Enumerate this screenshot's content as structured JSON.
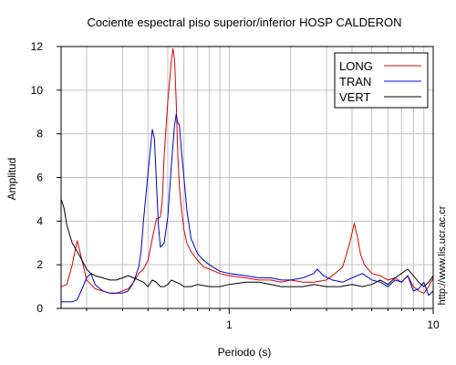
{
  "chart_data": {
    "type": "line",
    "title": "Cociente espectral piso superior/inferior  HOSP CALDERON",
    "xlabel": "Periodo (s)",
    "ylabel": "Amplitud",
    "side_text": "http://www.lis.ucr.ac.cr",
    "x_scale": "log",
    "xlim": [
      0.15,
      10
    ],
    "ylim": [
      0,
      12
    ],
    "x_ticks": [
      1,
      10
    ],
    "x_tick_labels": [
      "1",
      "10"
    ],
    "y_ticks": [
      0,
      2,
      4,
      6,
      8,
      10,
      12
    ],
    "y_tick_labels": [
      "0",
      "2",
      "4",
      "6",
      "8",
      "10",
      "12"
    ],
    "grid": true,
    "legend_position": "top-right",
    "series": [
      {
        "name": "LONG",
        "color": "#dd0000",
        "x": [
          0.15,
          0.16,
          0.17,
          0.18,
          0.19,
          0.2,
          0.21,
          0.22,
          0.24,
          0.26,
          0.28,
          0.3,
          0.32,
          0.34,
          0.36,
          0.38,
          0.4,
          0.42,
          0.44,
          0.46,
          0.47,
          0.48,
          0.5,
          0.52,
          0.53,
          0.54,
          0.55,
          0.56,
          0.57,
          0.58,
          0.6,
          0.62,
          0.65,
          0.7,
          0.75,
          0.8,
          0.9,
          1.0,
          1.2,
          1.4,
          1.6,
          1.8,
          2.0,
          2.3,
          2.6,
          3.0,
          3.3,
          3.6,
          3.9,
          4.1,
          4.25,
          4.4,
          4.6,
          5.0,
          5.5,
          6.0,
          6.5,
          7.0,
          7.5,
          8.0,
          8.5,
          9.0,
          9.5,
          10.0
        ],
        "y": [
          1.0,
          1.1,
          2.0,
          3.1,
          2.2,
          1.3,
          1.1,
          0.9,
          0.8,
          0.7,
          0.7,
          0.8,
          0.9,
          1.2,
          1.6,
          1.8,
          2.2,
          3.2,
          4.1,
          4.2,
          5.0,
          7.0,
          9.5,
          11.3,
          11.9,
          11.4,
          9.5,
          7.0,
          5.6,
          4.8,
          3.6,
          3.0,
          2.6,
          2.2,
          1.9,
          1.8,
          1.6,
          1.5,
          1.4,
          1.3,
          1.3,
          1.2,
          1.3,
          1.2,
          1.2,
          1.3,
          1.6,
          1.9,
          3.0,
          3.9,
          3.3,
          2.5,
          2.0,
          1.6,
          1.5,
          1.3,
          1.4,
          1.2,
          1.5,
          1.0,
          0.8,
          0.7,
          1.0,
          1.4
        ]
      },
      {
        "name": "TRAN",
        "color": "#0000cc",
        "x": [
          0.15,
          0.16,
          0.17,
          0.18,
          0.19,
          0.2,
          0.21,
          0.22,
          0.24,
          0.26,
          0.28,
          0.3,
          0.32,
          0.34,
          0.36,
          0.37,
          0.38,
          0.4,
          0.42,
          0.43,
          0.44,
          0.45,
          0.46,
          0.48,
          0.5,
          0.52,
          0.54,
          0.55,
          0.56,
          0.57,
          0.58,
          0.6,
          0.62,
          0.65,
          0.7,
          0.75,
          0.8,
          0.9,
          1.0,
          1.2,
          1.4,
          1.6,
          1.8,
          2.0,
          2.3,
          2.6,
          2.7,
          2.9,
          3.2,
          3.6,
          4.0,
          4.5,
          5.0,
          5.5,
          6.0,
          6.5,
          7.0,
          7.5,
          8.0,
          8.5,
          9.0,
          9.5,
          10.0
        ],
        "y": [
          0.3,
          0.3,
          0.3,
          0.4,
          0.9,
          1.4,
          1.6,
          1.1,
          0.8,
          0.7,
          0.7,
          0.7,
          0.8,
          1.2,
          1.9,
          2.6,
          4.0,
          6.2,
          8.2,
          7.8,
          5.8,
          3.8,
          2.8,
          3.0,
          4.2,
          6.5,
          8.4,
          8.9,
          8.5,
          8.4,
          7.5,
          6.0,
          4.5,
          3.2,
          2.5,
          2.2,
          2.0,
          1.7,
          1.6,
          1.5,
          1.4,
          1.4,
          1.3,
          1.3,
          1.4,
          1.6,
          1.8,
          1.5,
          1.3,
          1.2,
          1.4,
          1.6,
          1.3,
          1.2,
          1.0,
          1.3,
          1.2,
          1.5,
          0.8,
          0.9,
          1.2,
          0.6,
          0.8
        ]
      },
      {
        "name": "VERT",
        "color": "#000000",
        "x": [
          0.15,
          0.155,
          0.16,
          0.17,
          0.18,
          0.19,
          0.2,
          0.21,
          0.22,
          0.24,
          0.26,
          0.28,
          0.3,
          0.32,
          0.34,
          0.36,
          0.38,
          0.4,
          0.42,
          0.44,
          0.46,
          0.48,
          0.5,
          0.52,
          0.55,
          0.58,
          0.6,
          0.65,
          0.7,
          0.8,
          0.9,
          1.0,
          1.2,
          1.4,
          1.6,
          1.8,
          2.0,
          2.3,
          2.6,
          3.0,
          3.5,
          4.0,
          4.5,
          5.0,
          5.5,
          6.0,
          6.5,
          7.0,
          7.5,
          8.0,
          8.5,
          9.0,
          9.5,
          10.0
        ],
        "y": [
          5.0,
          4.6,
          3.8,
          3.0,
          2.6,
          2.2,
          1.8,
          1.6,
          1.5,
          1.4,
          1.3,
          1.3,
          1.4,
          1.5,
          1.4,
          1.3,
          1.2,
          1.0,
          1.3,
          1.2,
          1.0,
          1.0,
          1.1,
          1.3,
          1.2,
          1.1,
          1.0,
          1.0,
          1.1,
          1.0,
          1.0,
          1.1,
          1.2,
          1.2,
          1.1,
          1.0,
          1.0,
          1.0,
          1.1,
          1.0,
          1.0,
          1.1,
          1.0,
          1.1,
          1.3,
          1.1,
          1.4,
          1.6,
          1.8,
          1.5,
          1.2,
          1.0,
          1.2,
          1.5
        ]
      }
    ]
  }
}
